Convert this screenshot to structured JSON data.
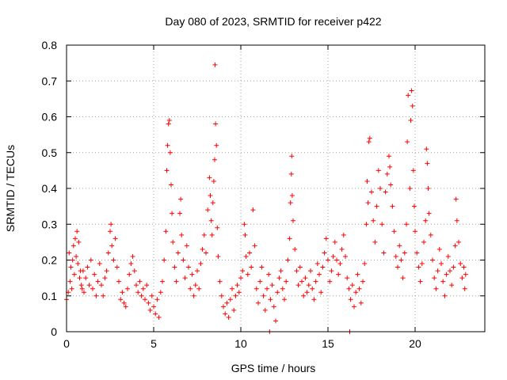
{
  "chart_data": {
    "type": "scatter",
    "title": "Day 080 of 2023, SRMTID for receiver p422",
    "xlabel": "GPS time / hours",
    "ylabel": "SRMTID / TECUs",
    "xlim": [
      0,
      24
    ],
    "ylim": [
      0,
      0.8
    ],
    "xticks": [
      0,
      5,
      10,
      15,
      20
    ],
    "yticks": [
      0,
      0.1,
      0.2,
      0.3,
      0.4,
      0.5,
      0.6,
      0.7,
      0.8
    ],
    "xtick_labels": [
      "0",
      "5",
      "10",
      "15",
      "20"
    ],
    "ytick_labels": [
      "0",
      "0.1",
      "0.2",
      "0.3",
      "0.4",
      "0.5",
      "0.6",
      "0.7",
      "0.8"
    ],
    "grid": true,
    "marker": "+",
    "color": "#ff0000",
    "series": [
      {
        "name": "SRMTID",
        "points": [
          [
            0.0,
            0.09
          ],
          [
            0.1,
            0.11
          ],
          [
            0.15,
            0.22
          ],
          [
            0.2,
            0.14
          ],
          [
            0.25,
            0.18
          ],
          [
            0.3,
            0.12
          ],
          [
            0.35,
            0.2
          ],
          [
            0.4,
            0.24
          ],
          [
            0.45,
            0.16
          ],
          [
            0.5,
            0.26
          ],
          [
            0.55,
            0.21
          ],
          [
            0.6,
            0.28
          ],
          [
            0.65,
            0.19
          ],
          [
            0.7,
            0.25
          ],
          [
            0.75,
            0.15
          ],
          [
            0.8,
            0.17
          ],
          [
            0.85,
            0.13
          ],
          [
            0.9,
            0.12
          ],
          [
            0.95,
            0.17
          ],
          [
            1.0,
            0.11
          ],
          [
            1.1,
            0.15
          ],
          [
            1.2,
            0.18
          ],
          [
            1.3,
            0.13
          ],
          [
            1.4,
            0.2
          ],
          [
            1.5,
            0.12
          ],
          [
            1.6,
            0.16
          ],
          [
            1.7,
            0.1
          ],
          [
            1.8,
            0.14
          ],
          [
            1.9,
            0.19
          ],
          [
            2.0,
            0.13
          ],
          [
            2.1,
            0.1
          ],
          [
            2.2,
            0.15
          ],
          [
            2.3,
            0.17
          ],
          [
            2.4,
            0.22
          ],
          [
            2.5,
            0.28
          ],
          [
            2.55,
            0.3
          ],
          [
            2.6,
            0.24
          ],
          [
            2.7,
            0.2
          ],
          [
            2.8,
            0.26
          ],
          [
            2.9,
            0.18
          ],
          [
            3.0,
            0.14
          ],
          [
            3.1,
            0.09
          ],
          [
            3.2,
            0.11
          ],
          [
            3.3,
            0.08
          ],
          [
            3.4,
            0.07
          ],
          [
            3.5,
            0.12
          ],
          [
            3.6,
            0.16
          ],
          [
            3.7,
            0.19
          ],
          [
            3.8,
            0.21
          ],
          [
            3.9,
            0.17
          ],
          [
            4.0,
            0.13
          ],
          [
            4.1,
            0.11
          ],
          [
            4.2,
            0.14
          ],
          [
            4.3,
            0.1
          ],
          [
            4.4,
            0.12
          ],
          [
            4.5,
            0.09
          ],
          [
            4.6,
            0.13
          ],
          [
            4.7,
            0.08
          ],
          [
            4.8,
            0.06
          ],
          [
            4.9,
            0.1
          ],
          [
            5.0,
            0.07
          ],
          [
            5.1,
            0.05
          ],
          [
            5.2,
            0.09
          ],
          [
            5.3,
            0.04
          ],
          [
            5.4,
            0.11
          ],
          [
            5.5,
            0.14
          ],
          [
            5.6,
            0.2
          ],
          [
            5.7,
            0.28
          ],
          [
            5.75,
            0.45
          ],
          [
            5.8,
            0.52
          ],
          [
            5.85,
            0.58
          ],
          [
            5.9,
            0.59
          ],
          [
            5.95,
            0.5
          ],
          [
            6.0,
            0.41
          ],
          [
            6.05,
            0.33
          ],
          [
            6.1,
            0.25
          ],
          [
            6.2,
            0.18
          ],
          [
            6.3,
            0.14
          ],
          [
            6.4,
            0.22
          ],
          [
            6.5,
            0.33
          ],
          [
            6.55,
            0.37
          ],
          [
            6.6,
            0.27
          ],
          [
            6.7,
            0.2
          ],
          [
            6.8,
            0.15
          ],
          [
            6.9,
            0.24
          ],
          [
            7.0,
            0.18
          ],
          [
            7.1,
            0.12
          ],
          [
            7.2,
            0.16
          ],
          [
            7.3,
            0.1
          ],
          [
            7.4,
            0.13
          ],
          [
            7.5,
            0.17
          ],
          [
            7.6,
            0.12
          ],
          [
            7.7,
            0.19
          ],
          [
            7.8,
            0.23
          ],
          [
            7.9,
            0.27
          ],
          [
            8.0,
            0.22
          ],
          [
            8.1,
            0.34
          ],
          [
            8.2,
            0.43
          ],
          [
            8.25,
            0.38
          ],
          [
            8.3,
            0.31
          ],
          [
            8.35,
            0.27
          ],
          [
            8.4,
            0.36
          ],
          [
            8.45,
            0.42
          ],
          [
            8.5,
            0.48
          ],
          [
            8.52,
            0.745
          ],
          [
            8.55,
            0.58
          ],
          [
            8.6,
            0.52
          ],
          [
            8.65,
            0.29
          ],
          [
            8.7,
            0.21
          ],
          [
            8.8,
            0.14
          ],
          [
            8.9,
            0.1
          ],
          [
            9.0,
            0.07
          ],
          [
            9.1,
            0.05
          ],
          [
            9.2,
            0.08
          ],
          [
            9.3,
            0.04
          ],
          [
            9.4,
            0.09
          ],
          [
            9.5,
            0.12
          ],
          [
            9.6,
            0.06
          ],
          [
            9.7,
            0.1
          ],
          [
            9.8,
            0.13
          ],
          [
            9.9,
            0.11
          ],
          [
            10.0,
            0.15
          ],
          [
            10.1,
            0.17
          ],
          [
            10.2,
            0.3
          ],
          [
            10.25,
            0.27
          ],
          [
            10.3,
            0.21
          ],
          [
            10.4,
            0.16
          ],
          [
            10.5,
            0.22
          ],
          [
            10.6,
            0.18
          ],
          [
            10.7,
            0.34
          ],
          [
            10.8,
            0.24
          ],
          [
            10.9,
            0.12
          ],
          [
            11.0,
            0.08
          ],
          [
            11.1,
            0.14
          ],
          [
            11.2,
            0.18
          ],
          [
            11.3,
            0.1
          ],
          [
            11.4,
            0.06
          ],
          [
            11.5,
            0.12
          ],
          [
            11.6,
            0.16
          ],
          [
            11.65,
            0.0
          ],
          [
            11.7,
            0.09
          ],
          [
            11.8,
            0.13
          ],
          [
            11.9,
            0.07
          ],
          [
            12.0,
            0.03
          ],
          [
            12.1,
            0.11
          ],
          [
            12.2,
            0.15
          ],
          [
            12.3,
            0.17
          ],
          [
            12.4,
            0.12
          ],
          [
            12.5,
            0.09
          ],
          [
            12.6,
            0.14
          ],
          [
            12.7,
            0.2
          ],
          [
            12.8,
            0.26
          ],
          [
            12.85,
            0.36
          ],
          [
            12.9,
            0.44
          ],
          [
            12.92,
            0.49
          ],
          [
            12.95,
            0.38
          ],
          [
            13.0,
            0.31
          ],
          [
            13.1,
            0.23
          ],
          [
            13.2,
            0.17
          ],
          [
            13.3,
            0.13
          ],
          [
            13.4,
            0.18
          ],
          [
            13.5,
            0.14
          ],
          [
            13.6,
            0.1
          ],
          [
            13.7,
            0.15
          ],
          [
            13.8,
            0.11
          ],
          [
            13.9,
            0.13
          ],
          [
            14.0,
            0.17
          ],
          [
            14.1,
            0.12
          ],
          [
            14.2,
            0.09
          ],
          [
            14.3,
            0.14
          ],
          [
            14.4,
            0.19
          ],
          [
            14.5,
            0.16
          ],
          [
            14.6,
            0.11
          ],
          [
            14.7,
            0.18
          ],
          [
            14.8,
            0.22
          ],
          [
            14.9,
            0.26
          ],
          [
            15.0,
            0.2
          ],
          [
            15.1,
            0.14
          ],
          [
            15.2,
            0.17
          ],
          [
            15.3,
            0.21
          ],
          [
            15.4,
            0.25
          ],
          [
            15.5,
            0.2
          ],
          [
            15.6,
            0.16
          ],
          [
            15.7,
            0.19
          ],
          [
            15.8,
            0.23
          ],
          [
            15.9,
            0.27
          ],
          [
            16.0,
            0.21
          ],
          [
            16.1,
            0.15
          ],
          [
            16.2,
            0.12
          ],
          [
            16.25,
            0.0
          ],
          [
            16.3,
            0.09
          ],
          [
            16.4,
            0.13
          ],
          [
            16.5,
            0.07
          ],
          [
            16.6,
            0.11
          ],
          [
            16.7,
            0.16
          ],
          [
            16.8,
            0.12
          ],
          [
            16.9,
            0.08
          ],
          [
            17.0,
            0.14
          ],
          [
            17.1,
            0.19
          ],
          [
            17.2,
            0.3
          ],
          [
            17.25,
            0.42
          ],
          [
            17.3,
            0.36
          ],
          [
            17.35,
            0.53
          ],
          [
            17.4,
            0.54
          ],
          [
            17.5,
            0.39
          ],
          [
            17.6,
            0.31
          ],
          [
            17.7,
            0.25
          ],
          [
            17.8,
            0.35
          ],
          [
            17.9,
            0.45
          ],
          [
            18.0,
            0.4
          ],
          [
            18.1,
            0.3
          ],
          [
            18.2,
            0.22
          ],
          [
            18.3,
            0.39
          ],
          [
            18.4,
            0.44
          ],
          [
            18.5,
            0.49
          ],
          [
            18.55,
            0.46
          ],
          [
            18.6,
            0.41
          ],
          [
            18.7,
            0.35
          ],
          [
            18.8,
            0.28
          ],
          [
            18.9,
            0.21
          ],
          [
            19.0,
            0.18
          ],
          [
            19.1,
            0.24
          ],
          [
            19.2,
            0.2
          ],
          [
            19.3,
            0.15
          ],
          [
            19.4,
            0.22
          ],
          [
            19.5,
            0.3
          ],
          [
            19.55,
            0.53
          ],
          [
            19.6,
            0.66
          ],
          [
            19.7,
            0.4
          ],
          [
            19.75,
            0.59
          ],
          [
            19.8,
            0.673
          ],
          [
            19.85,
            0.63
          ],
          [
            19.9,
            0.45
          ],
          [
            19.95,
            0.35
          ],
          [
            20.0,
            0.28
          ],
          [
            20.1,
            0.22
          ],
          [
            20.2,
            0.18
          ],
          [
            20.3,
            0.14
          ],
          [
            20.4,
            0.19
          ],
          [
            20.5,
            0.25
          ],
          [
            20.6,
            0.31
          ],
          [
            20.65,
            0.51
          ],
          [
            20.7,
            0.47
          ],
          [
            20.75,
            0.4
          ],
          [
            20.8,
            0.33
          ],
          [
            20.9,
            0.27
          ],
          [
            21.0,
            0.2
          ],
          [
            21.1,
            0.15
          ],
          [
            21.2,
            0.12
          ],
          [
            21.3,
            0.17
          ],
          [
            21.4,
            0.23
          ],
          [
            21.5,
            0.19
          ],
          [
            21.6,
            0.14
          ],
          [
            21.7,
            0.1
          ],
          [
            21.8,
            0.16
          ],
          [
            21.9,
            0.21
          ],
          [
            22.0,
            0.17
          ],
          [
            22.1,
            0.13
          ],
          [
            22.2,
            0.18
          ],
          [
            22.3,
            0.24
          ],
          [
            22.35,
            0.37
          ],
          [
            22.4,
            0.31
          ],
          [
            22.5,
            0.25
          ],
          [
            22.6,
            0.19
          ],
          [
            22.7,
            0.15
          ],
          [
            22.8,
            0.18
          ],
          [
            22.85,
            0.12
          ],
          [
            22.9,
            0.16
          ]
        ]
      }
    ]
  }
}
